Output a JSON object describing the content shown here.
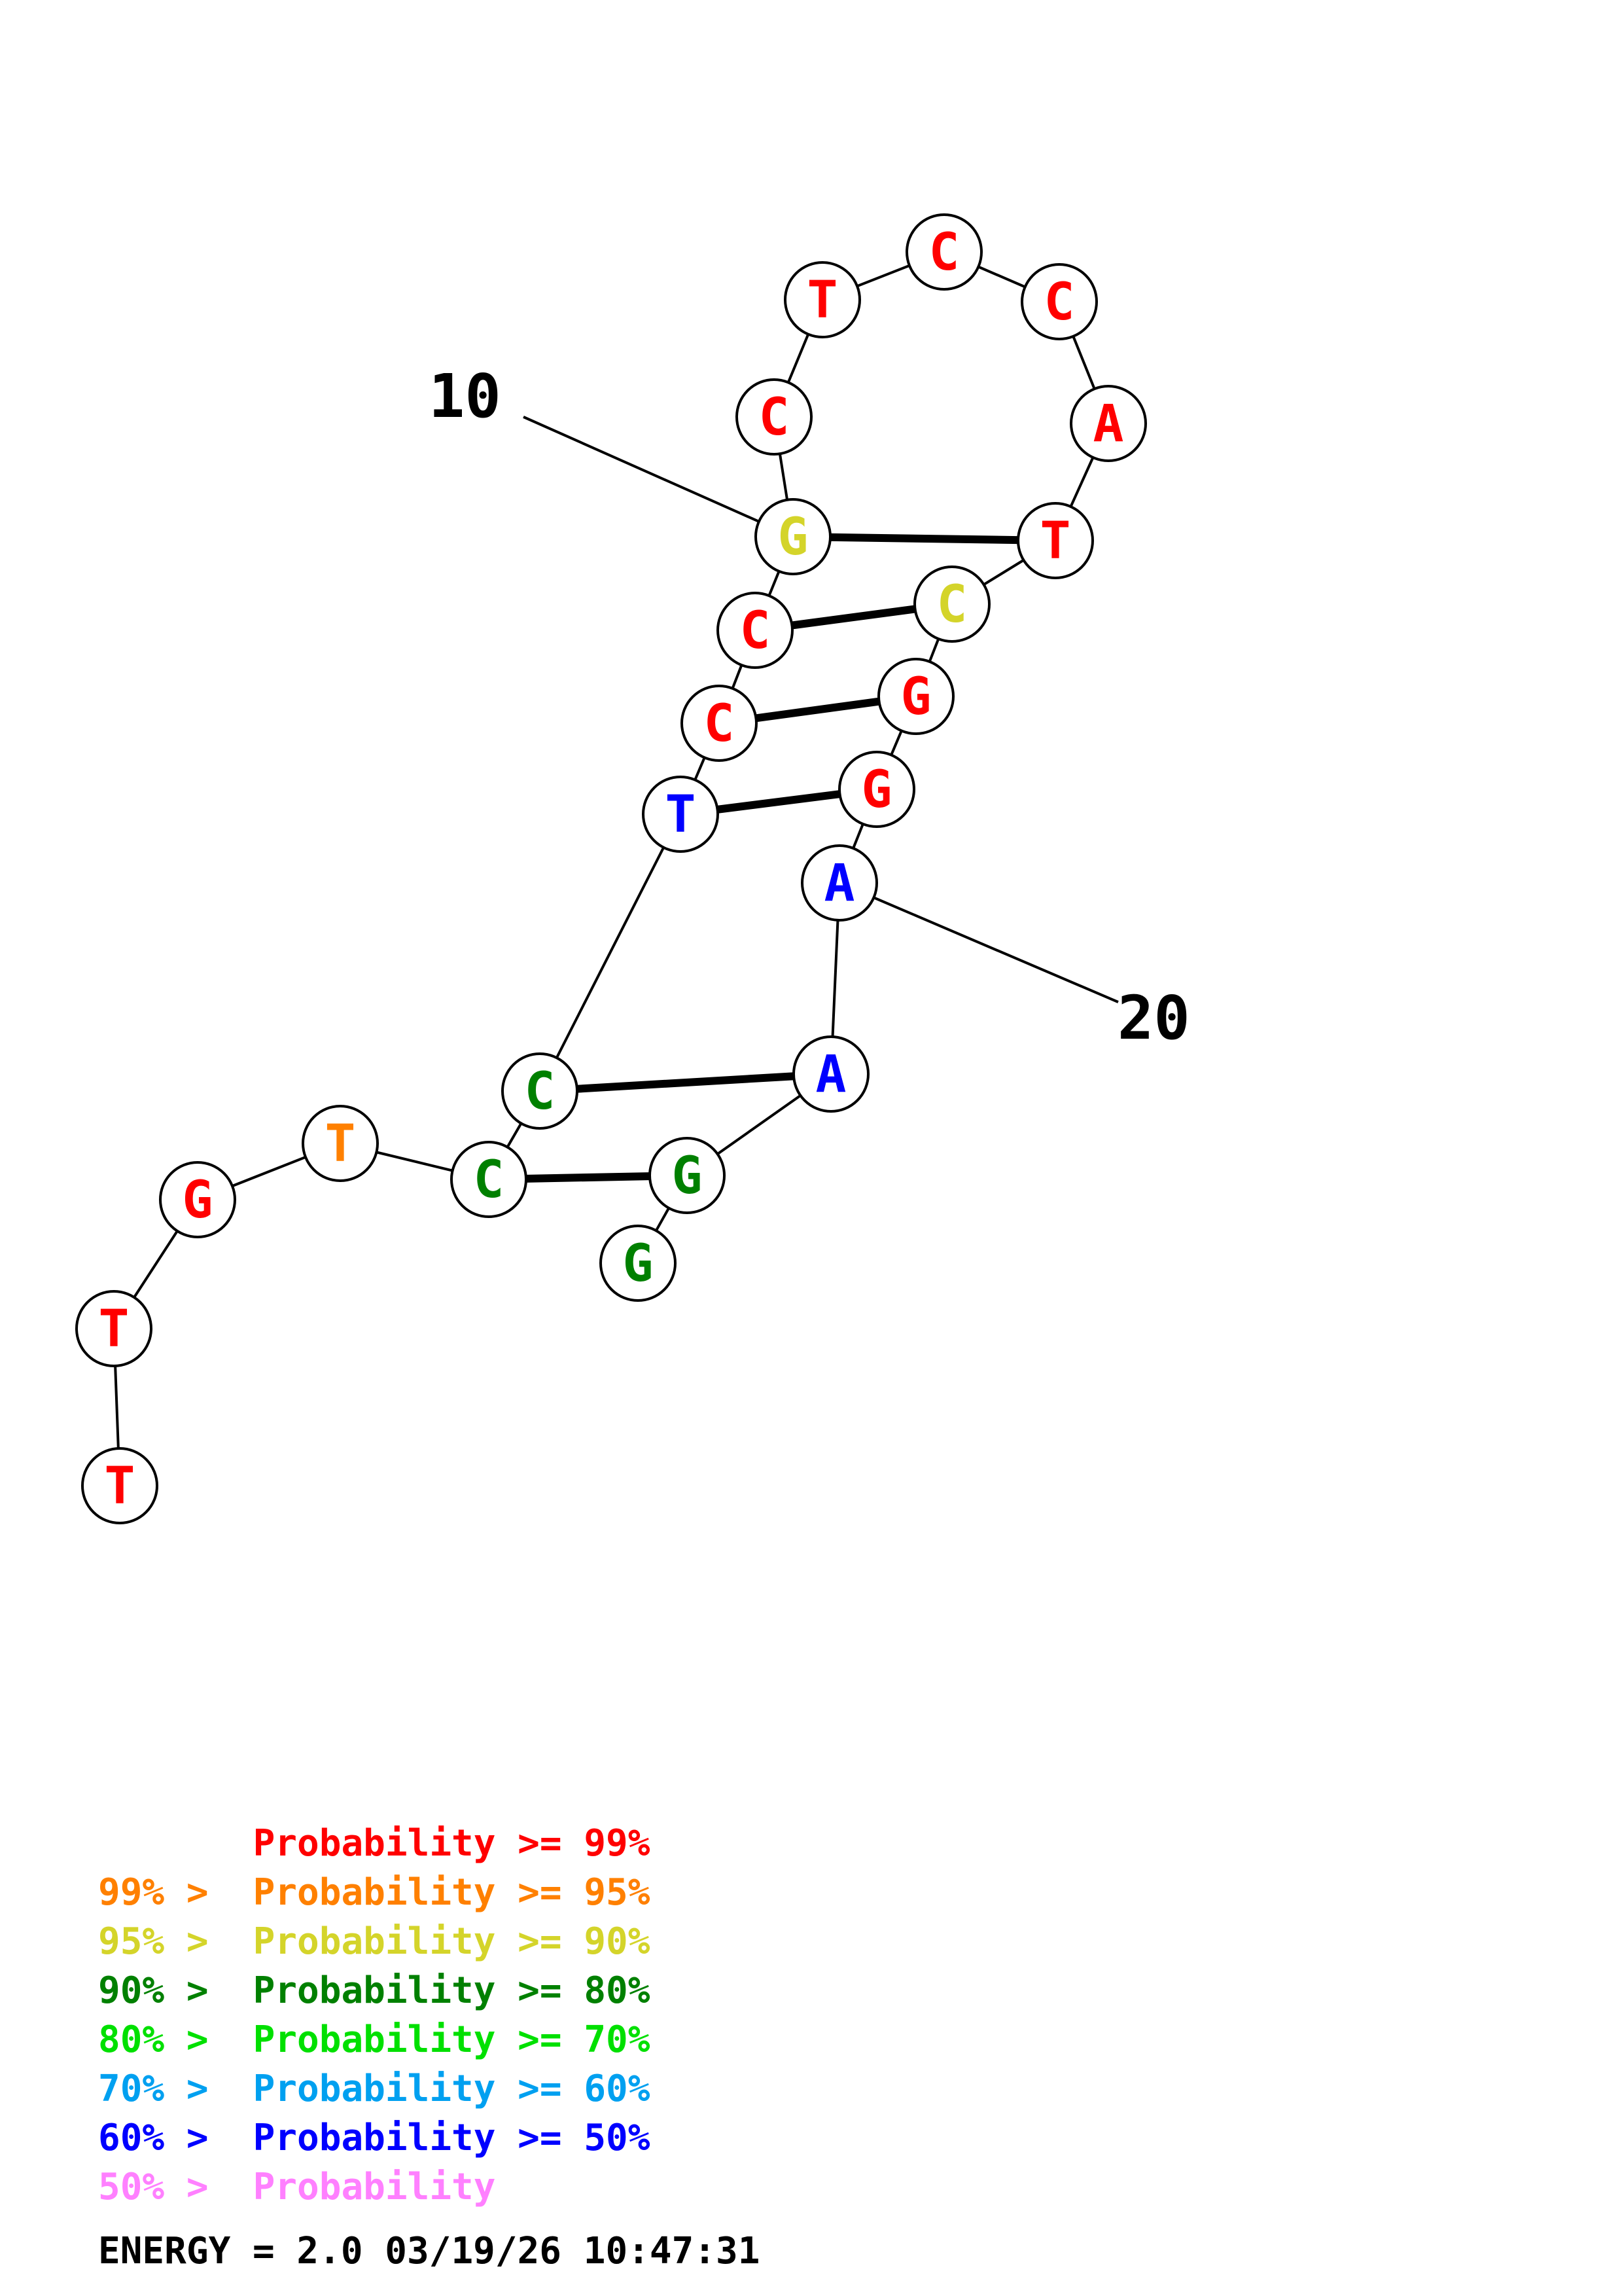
{
  "colors": {
    "red": "#ff0000",
    "orange": "#ff8000",
    "yellow": "#d4d42a",
    "dark_green": "#008000",
    "green": "#00e000",
    "light_blue": "#00a0f0",
    "blue": "#0000ff",
    "pink": "#ff80ff",
    "backbone": "#000000",
    "node_fill": "#ffffff"
  },
  "structure": {
    "nucleotides": [
      {
        "base": "T",
        "color": "red"
      },
      {
        "base": "T",
        "color": "red"
      },
      {
        "base": "G",
        "color": "red"
      },
      {
        "base": "T",
        "color": "orange"
      },
      {
        "base": "C",
        "color": "dark_green"
      },
      {
        "base": "C",
        "color": "dark_green"
      },
      {
        "base": "T",
        "color": "blue"
      },
      {
        "base": "C",
        "color": "red"
      },
      {
        "base": "C",
        "color": "red"
      },
      {
        "base": "G",
        "color": "yellow"
      },
      {
        "base": "C",
        "color": "red"
      },
      {
        "base": "T",
        "color": "red"
      },
      {
        "base": "C",
        "color": "red"
      },
      {
        "base": "C",
        "color": "red"
      },
      {
        "base": "A",
        "color": "red"
      },
      {
        "base": "T",
        "color": "red"
      },
      {
        "base": "C",
        "color": "yellow"
      },
      {
        "base": "G",
        "color": "red"
      },
      {
        "base": "G",
        "color": "red"
      },
      {
        "base": "A",
        "color": "blue"
      },
      {
        "base": "A",
        "color": "blue"
      },
      {
        "base": "G",
        "color": "dark_green"
      },
      {
        "base": "G",
        "color": "dark_green"
      }
    ],
    "pairs": [
      [
        5,
        22
      ],
      [
        6,
        21
      ],
      [
        7,
        19
      ],
      [
        8,
        18
      ],
      [
        9,
        17
      ],
      [
        10,
        16
      ]
    ],
    "position_labels": [
      {
        "text": "10",
        "index": 10
      },
      {
        "text": "20",
        "index": 20
      }
    ]
  },
  "legend": {
    "lines": [
      {
        "prefix": "",
        "middle": "Probability >= 99%",
        "color": "red"
      },
      {
        "prefix": "99% > ",
        "middle": "Probability >= 95%",
        "color": "orange"
      },
      {
        "prefix": "95% > ",
        "middle": "Probability >= 90%",
        "color": "yellow"
      },
      {
        "prefix": "90% > ",
        "middle": "Probability >= 80%",
        "color": "dark_green"
      },
      {
        "prefix": "80% > ",
        "middle": "Probability >= 70%",
        "color": "green"
      },
      {
        "prefix": "70% > ",
        "middle": "Probability >= 60%",
        "color": "light_blue"
      },
      {
        "prefix": "60% > ",
        "middle": "Probability >= 50%",
        "color": "blue"
      },
      {
        "prefix": "50% > ",
        "middle": "Probability",
        "color": "pink"
      }
    ]
  },
  "footer": {
    "energy_text": "ENERGY = 2.0  03/19/26 10:47:31"
  }
}
